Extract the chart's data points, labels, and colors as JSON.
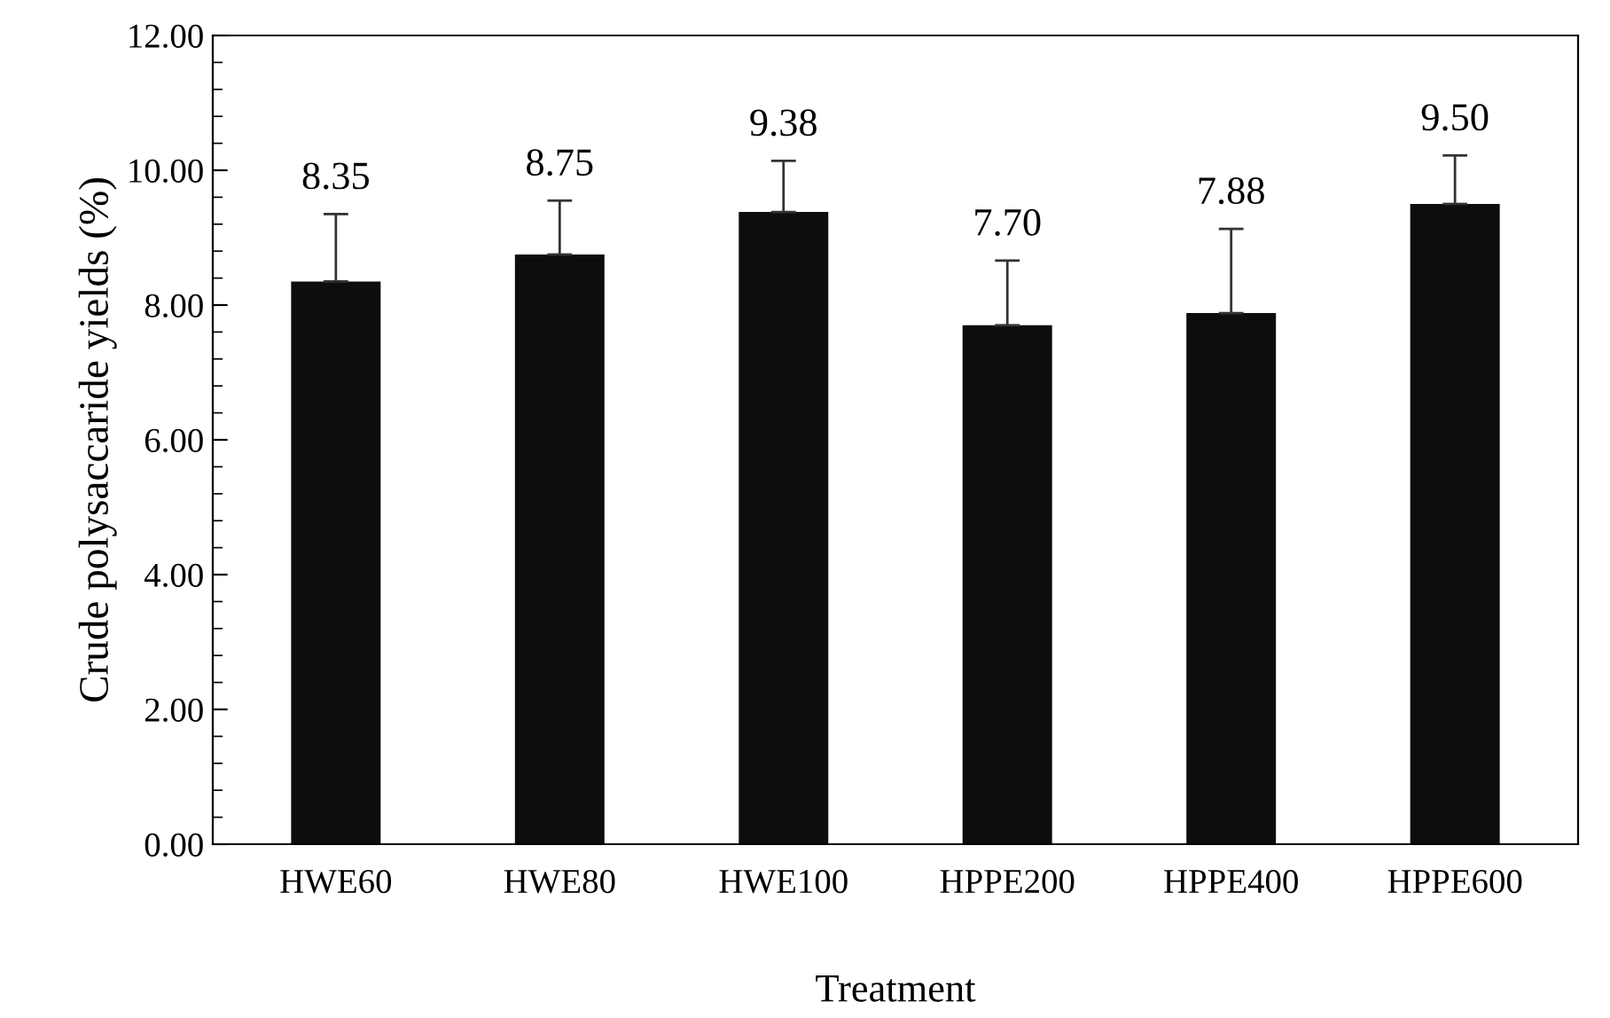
{
  "chart_data": {
    "type": "bar",
    "xlabel": "Treatment",
    "ylabel": "Crude polysaccaride yields (%)",
    "categories": [
      "HWE60",
      "HWE80",
      "HWE100",
      "HPPE200",
      "HPPE400",
      "HPPE600"
    ],
    "values": [
      8.35,
      8.75,
      9.38,
      7.7,
      7.88,
      9.5
    ],
    "errors": [
      [
        8.35,
        9.35
      ],
      [
        8.75,
        9.55
      ],
      [
        9.38,
        10.14
      ],
      [
        7.7,
        8.66
      ],
      [
        7.88,
        9.13
      ],
      [
        9.5,
        10.22
      ]
    ],
    "color": "#0d0d0d",
    "value_labels": [
      "8.35",
      "8.75",
      "9.38",
      "7.70",
      "7.88",
      "9.50"
    ],
    "ylim": [
      0,
      12
    ],
    "yticks": [
      {
        "value": 0,
        "label": "0.00"
      },
      {
        "value": 2,
        "label": "2.00"
      },
      {
        "value": 4,
        "label": "4.00"
      },
      {
        "value": 6,
        "label": "6.00"
      },
      {
        "value": 8,
        "label": "8.00"
      },
      {
        "value": 10,
        "label": "10.00"
      },
      {
        "value": 12,
        "label": "12.00"
      }
    ],
    "grid": false,
    "legend": false
  }
}
